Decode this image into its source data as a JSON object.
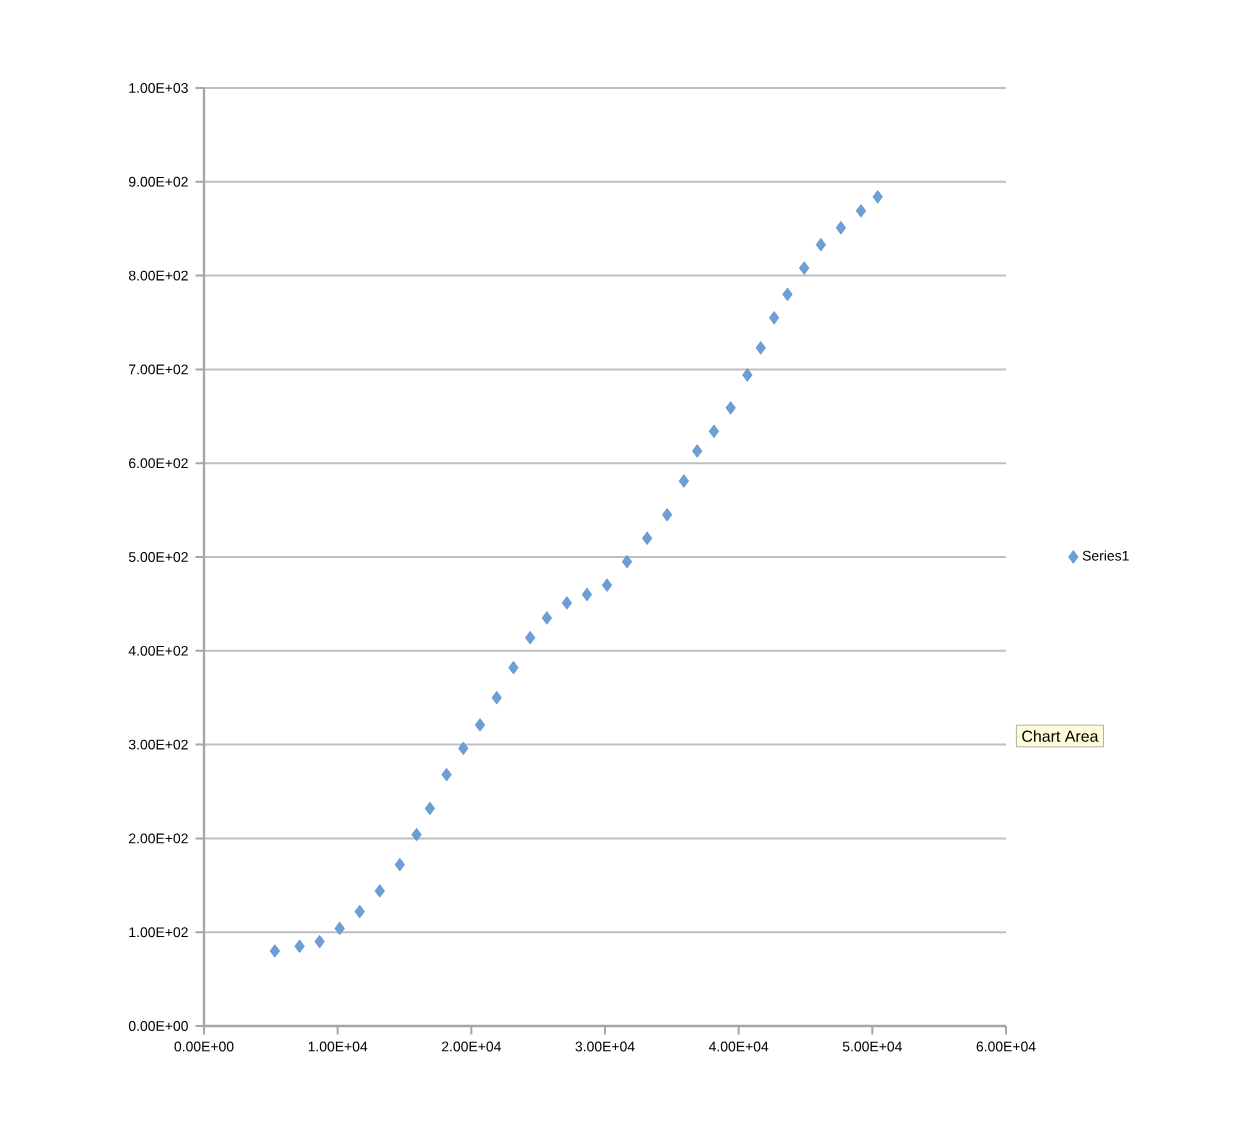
{
  "chart_data": {
    "type": "scatter",
    "marker": "diamond",
    "legend": "right",
    "grid": "y",
    "xlim": [
      0,
      60000
    ],
    "ylim": [
      0,
      1000
    ],
    "xticks": [
      {
        "value": 0,
        "label": "0.00E+00"
      },
      {
        "value": 10000,
        "label": "1.00E+04"
      },
      {
        "value": 20000,
        "label": "2.00E+04"
      },
      {
        "value": 30000,
        "label": "3.00E+04"
      },
      {
        "value": 40000,
        "label": "4.00E+04"
      },
      {
        "value": 50000,
        "label": "5.00E+04"
      },
      {
        "value": 60000,
        "label": "6.00E+04"
      }
    ],
    "yticks": [
      {
        "value": 0,
        "label": "0.00E+00"
      },
      {
        "value": 100,
        "label": "1.00E+02"
      },
      {
        "value": 200,
        "label": "2.00E+02"
      },
      {
        "value": 300,
        "label": "3.00E+02"
      },
      {
        "value": 400,
        "label": "4.00E+02"
      },
      {
        "value": 500,
        "label": "5.00E+02"
      },
      {
        "value": 600,
        "label": "6.00E+02"
      },
      {
        "value": 700,
        "label": "7.00E+02"
      },
      {
        "value": 800,
        "label": "8.00E+02"
      },
      {
        "value": 900,
        "label": "9.00E+02"
      },
      {
        "value": 1000,
        "label": "1.00E+03"
      }
    ],
    "annotations": [
      "Chart Area"
    ],
    "series": [
      {
        "name": "Series1",
        "color": "#6a9fd8",
        "x": [
          5300,
          7150,
          8650,
          10150,
          11650,
          13150,
          14650,
          15900,
          16900,
          18150,
          19400,
          20650,
          21900,
          23150,
          24400,
          25650,
          27150,
          28650,
          30150,
          31650,
          33150,
          34650,
          35900,
          36900,
          38150,
          39400,
          40650,
          41650,
          42650,
          43650,
          44900,
          46150,
          47650,
          49150,
          50400
        ],
        "values": [
          80,
          85,
          90,
          104,
          122,
          144,
          172,
          204,
          232,
          268,
          296,
          321,
          350,
          382,
          414,
          435,
          451,
          460,
          470,
          495,
          520,
          545,
          581,
          613,
          634,
          659,
          694,
          723,
          755,
          780,
          808,
          833,
          851,
          869,
          884
        ]
      }
    ]
  }
}
